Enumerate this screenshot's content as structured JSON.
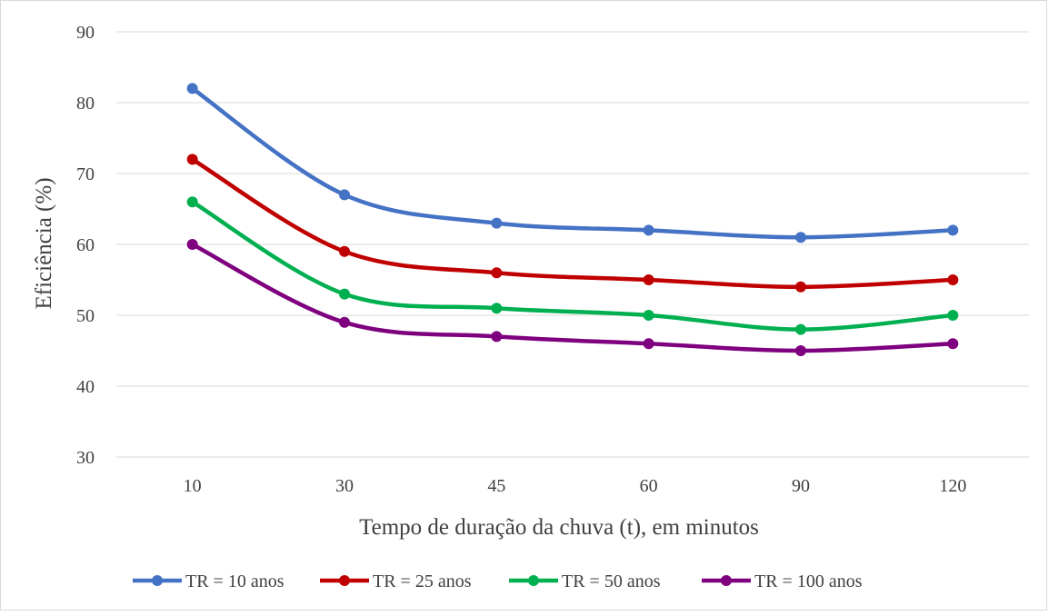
{
  "chart_data": {
    "type": "line",
    "title": "",
    "xlabel": "Tempo de duração da chuva (t), em minutos",
    "ylabel": "Eficiência (%)",
    "categories": [
      "10",
      "30",
      "45",
      "60",
      "90",
      "120"
    ],
    "ylim": [
      30,
      90
    ],
    "yticks": [
      "30",
      "40",
      "50",
      "60",
      "70",
      "80",
      "90"
    ],
    "grid": "horizontal",
    "legend_position": "bottom",
    "smooth": true,
    "series": [
      {
        "name": "TR = 10 anos",
        "color": "#4472C4",
        "values": [
          82,
          67,
          63,
          62,
          61,
          62
        ]
      },
      {
        "name": "TR = 25 anos",
        "color": "#C00000",
        "values": [
          72,
          59,
          56,
          55,
          54,
          55
        ]
      },
      {
        "name": "TR = 50 anos",
        "color": "#00B050",
        "values": [
          66,
          53,
          51,
          50,
          48,
          50
        ]
      },
      {
        "name": "TR = 100 anos",
        "color": "#7F007F",
        "values": [
          60,
          49,
          47,
          46,
          45,
          46
        ]
      }
    ]
  }
}
